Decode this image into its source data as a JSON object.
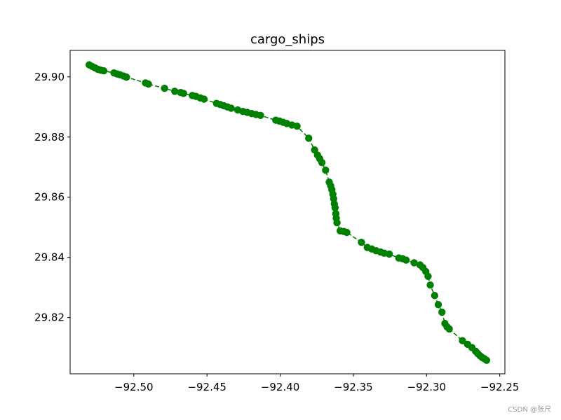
{
  "chart_data": {
    "type": "line",
    "title": "cargo_ships",
    "xlabel": "",
    "ylabel": "",
    "xlim": [
      -92.5435,
      -92.2465
    ],
    "ylim": [
      29.8013,
      29.9088
    ],
    "xticks": [
      -92.5,
      -92.45,
      -92.4,
      -92.35,
      -92.3,
      -92.25
    ],
    "xtick_labels": [
      "−92.50",
      "−92.45",
      "−92.40",
      "−92.35",
      "−92.30",
      "−92.25"
    ],
    "yticks": [
      29.82,
      29.84,
      29.86,
      29.88,
      29.9
    ],
    "ytick_labels": [
      "29.82",
      "29.84",
      "29.86",
      "29.88",
      "29.90"
    ],
    "grid": false,
    "series": [
      {
        "color": "#008000",
        "line_style": "dashed",
        "marker": "circle",
        "points": [
          [
            -92.5305,
            29.904
          ],
          [
            -92.5285,
            29.9035
          ],
          [
            -92.5265,
            29.903
          ],
          [
            -92.5245,
            29.9025
          ],
          [
            -92.5225,
            29.9022
          ],
          [
            -92.5205,
            29.902
          ],
          [
            -92.5135,
            29.9013
          ],
          [
            -92.5115,
            29.901
          ],
          [
            -92.5095,
            29.9007
          ],
          [
            -92.507,
            29.9003
          ],
          [
            -92.505,
            29.8999
          ],
          [
            -92.492,
            29.898
          ],
          [
            -92.49,
            29.8976
          ],
          [
            -92.479,
            29.8962
          ],
          [
            -92.472,
            29.8952
          ],
          [
            -92.468,
            29.8948
          ],
          [
            -92.466,
            29.8945
          ],
          [
            -92.46,
            29.8938
          ],
          [
            -92.4575,
            29.8935
          ],
          [
            -92.4545,
            29.893
          ],
          [
            -92.452,
            29.8926
          ],
          [
            -92.4435,
            29.8912
          ],
          [
            -92.441,
            29.8908
          ],
          [
            -92.4385,
            29.8904
          ],
          [
            -92.436,
            29.89
          ],
          [
            -92.4335,
            29.8896
          ],
          [
            -92.429,
            29.889
          ],
          [
            -92.4255,
            29.8885
          ],
          [
            -92.4225,
            29.8882
          ],
          [
            -92.4195,
            29.8878
          ],
          [
            -92.4165,
            29.8875
          ],
          [
            -92.4135,
            29.8872
          ],
          [
            -92.403,
            29.8856
          ],
          [
            -92.4005,
            29.8853
          ],
          [
            -92.398,
            29.8849
          ],
          [
            -92.3955,
            29.8845
          ],
          [
            -92.392,
            29.884
          ],
          [
            -92.3885,
            29.8836
          ],
          [
            -92.3805,
            29.8796
          ],
          [
            -92.3765,
            29.8757
          ],
          [
            -92.3745,
            29.874
          ],
          [
            -92.373,
            29.8728
          ],
          [
            -92.3715,
            29.8715
          ],
          [
            -92.369,
            29.869
          ],
          [
            -92.3665,
            29.865
          ],
          [
            -92.3655,
            29.8638
          ],
          [
            -92.3647,
            29.8625
          ],
          [
            -92.364,
            29.861
          ],
          [
            -92.3635,
            29.8595
          ],
          [
            -92.363,
            29.8578
          ],
          [
            -92.3625,
            29.8565
          ],
          [
            -92.362,
            29.8545
          ],
          [
            -92.3617,
            29.853
          ],
          [
            -92.3612,
            29.8515
          ],
          [
            -92.359,
            29.8488
          ],
          [
            -92.3565,
            29.8486
          ],
          [
            -92.3545,
            29.8483
          ],
          [
            -92.3445,
            29.845
          ],
          [
            -92.3405,
            29.8433
          ],
          [
            -92.3375,
            29.8428
          ],
          [
            -92.3345,
            29.8422
          ],
          [
            -92.3315,
            29.8418
          ],
          [
            -92.329,
            29.8414
          ],
          [
            -92.3255,
            29.8411
          ],
          [
            -92.319,
            29.8398
          ],
          [
            -92.3165,
            29.8396
          ],
          [
            -92.314,
            29.8391
          ],
          [
            -92.3085,
            29.8382
          ],
          [
            -92.3045,
            29.8375
          ],
          [
            -92.3025,
            29.8366
          ],
          [
            -92.3005,
            29.8353
          ],
          [
            -92.299,
            29.8337
          ],
          [
            -92.2975,
            29.8308
          ],
          [
            -92.2945,
            29.8273
          ],
          [
            -92.292,
            29.8243
          ],
          [
            -92.2895,
            29.8218
          ],
          [
            -92.2875,
            29.818
          ],
          [
            -92.286,
            29.8169
          ],
          [
            -92.2845,
            29.8162
          ],
          [
            -92.2755,
            29.8123
          ],
          [
            -92.272,
            29.8111
          ],
          [
            -92.269,
            29.81
          ],
          [
            -92.2665,
            29.8088
          ],
          [
            -92.265,
            29.808
          ],
          [
            -92.2635,
            29.8073
          ],
          [
            -92.262,
            29.8067
          ],
          [
            -92.2605,
            29.8063
          ],
          [
            -92.259,
            29.8058
          ]
        ]
      }
    ]
  },
  "watermark": "CSDN @张尺"
}
